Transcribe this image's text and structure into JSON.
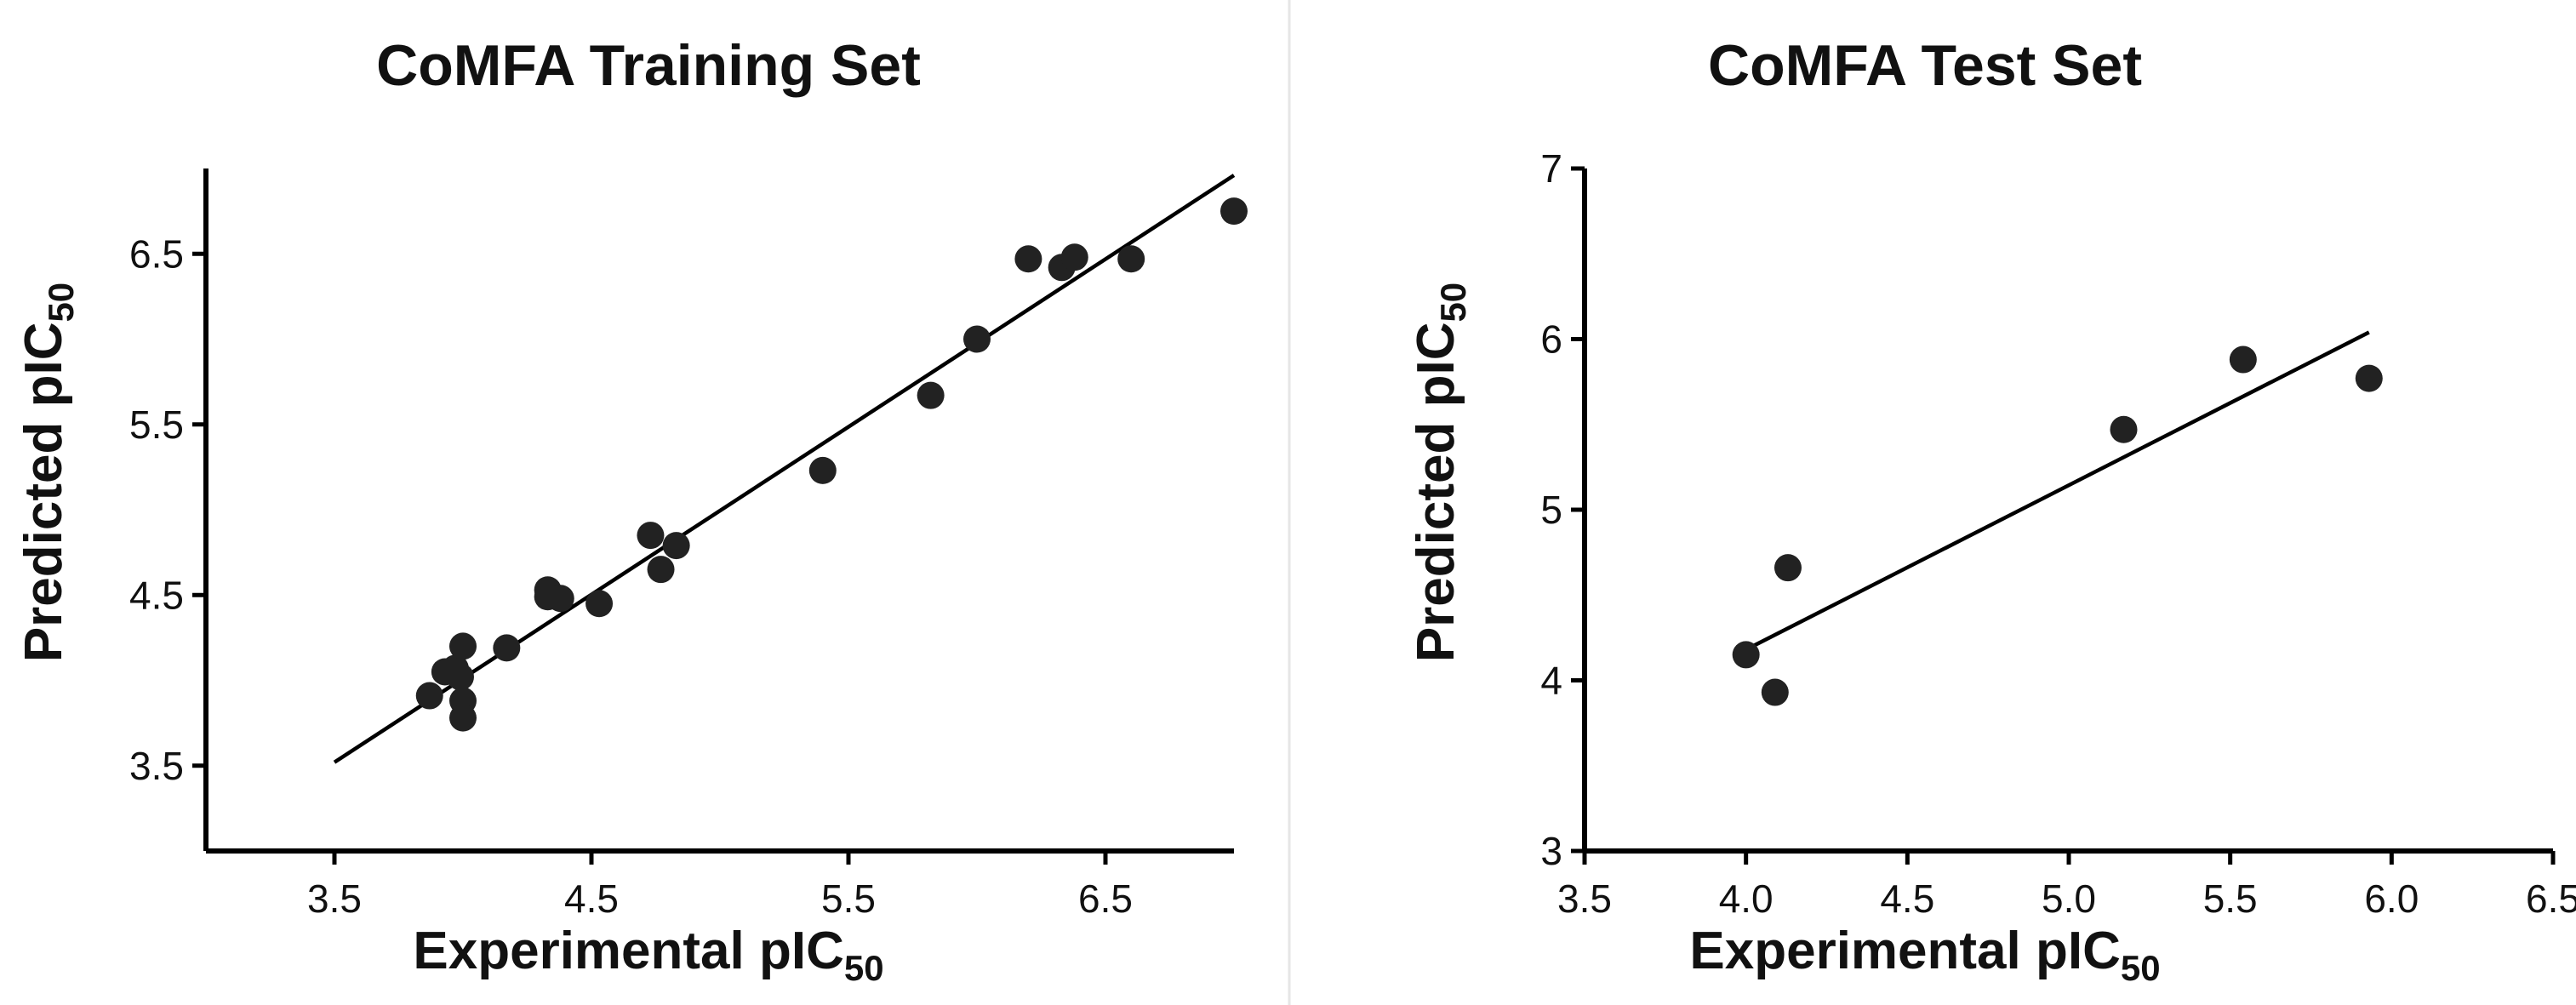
{
  "chart_data": [
    {
      "type": "scatter",
      "title": "CoMFA Training Set",
      "xlabel": "Experimental pIC",
      "xlabel_sub": "50",
      "ylabel": "Predicted pIC",
      "ylabel_sub": "50",
      "xlim": [
        3.0,
        7.0
      ],
      "ylim": [
        3.0,
        7.0
      ],
      "xticks": [
        3.5,
        4.5,
        5.5,
        6.5
      ],
      "xtick_labels": [
        "3.5",
        "4.5",
        "5.5",
        "6.5"
      ],
      "yticks": [
        3.5,
        4.5,
        5.5,
        6.5
      ],
      "ytick_labels": [
        "3.5",
        "4.5",
        "5.5",
        "6.5"
      ],
      "points": {
        "x": [
          3.87,
          3.93,
          3.97,
          3.99,
          4.0,
          4.0,
          4.0,
          4.17,
          4.33,
          4.33,
          4.38,
          4.53,
          4.73,
          4.77,
          4.83,
          5.4,
          5.82,
          6.0,
          6.2,
          6.33,
          6.38,
          6.6,
          7.0
        ],
        "y": [
          3.91,
          4.05,
          4.07,
          4.02,
          3.88,
          3.78,
          4.2,
          4.19,
          4.53,
          4.49,
          4.48,
          4.45,
          4.85,
          4.65,
          4.79,
          5.23,
          5.67,
          6.0,
          6.47,
          6.42,
          6.48,
          6.47,
          6.75
        ]
      },
      "fit_line": {
        "x": [
          3.5,
          7.0
        ],
        "y": [
          3.52,
          6.96
        ]
      }
    },
    {
      "type": "scatter",
      "title": "CoMFA Test Set",
      "xlabel": "Experimental pIC",
      "xlabel_sub": "50",
      "ylabel": "Predicted pIC",
      "ylabel_sub": "50",
      "xlim": [
        3.5,
        6.5
      ],
      "ylim": [
        3.0,
        7.0
      ],
      "xticks": [
        3.5,
        4.0,
        4.5,
        5.0,
        5.5,
        6.0,
        6.5
      ],
      "xtick_labels": [
        "3.5",
        "4.0",
        "4.5",
        "5.0",
        "5.5",
        "6.0",
        "6.5"
      ],
      "yticks": [
        3,
        4,
        5,
        6,
        7
      ],
      "ytick_labels": [
        "3",
        "4",
        "5",
        "6",
        "7"
      ],
      "points": {
        "x": [
          4.0,
          4.09,
          4.13,
          5.17,
          5.54,
          5.93
        ],
        "y": [
          4.15,
          3.93,
          4.66,
          5.47,
          5.88,
          5.77
        ]
      },
      "fit_line": {
        "x": [
          4.0,
          5.93
        ],
        "y": [
          4.18,
          6.04
        ]
      }
    }
  ]
}
